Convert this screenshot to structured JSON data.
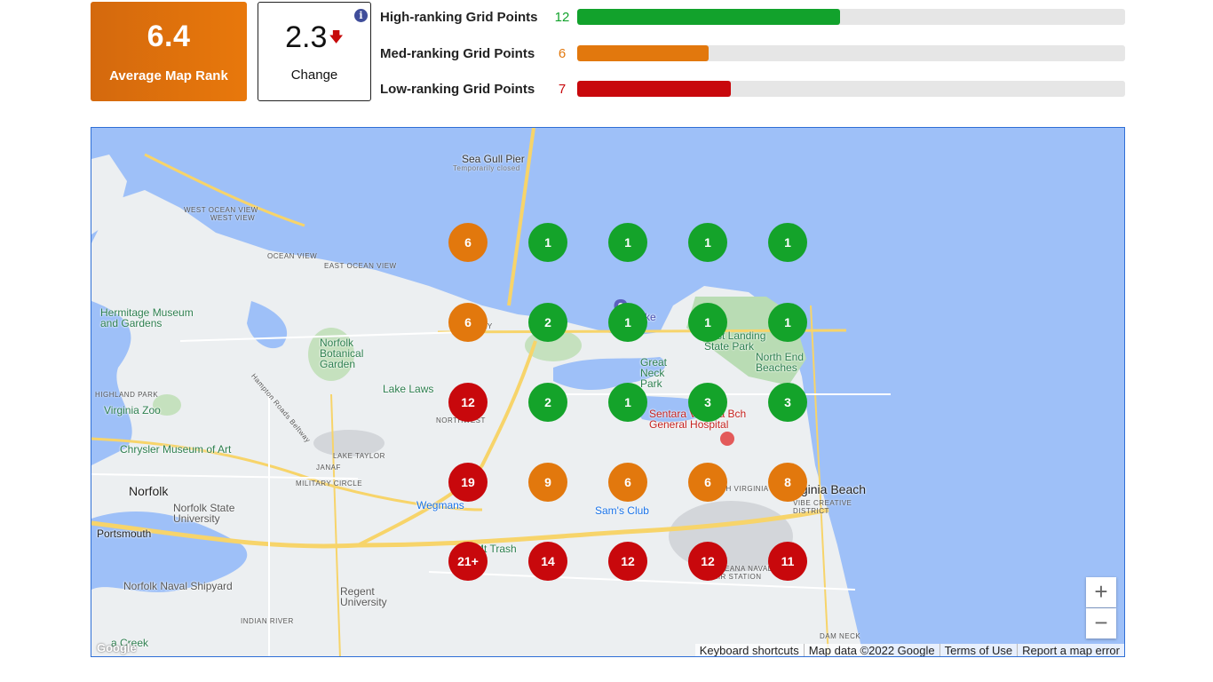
{
  "summary": {
    "average_rank": "6.4",
    "average_rank_label": "Average Map Rank",
    "change_value": "2.3",
    "change_arrow": "🡇",
    "change_label": "Change",
    "info_icon": "i"
  },
  "bars": [
    {
      "label": "High-ranking Grid Points",
      "count": "12",
      "fraction": 0.48,
      "color": "#12a22c"
    },
    {
      "label": "Med-ranking Grid Points",
      "count": "6",
      "fraction": 0.24,
      "color": "#e2780d"
    },
    {
      "label": "Low-ranking Grid Points",
      "count": "7",
      "fraction": 0.28,
      "color": "#c8080c"
    }
  ],
  "grid_ranks": [
    [
      "6",
      "1",
      "1",
      "1",
      "1"
    ],
    [
      "6",
      "2",
      "1",
      "1",
      "1"
    ],
    [
      "12",
      "2",
      "1",
      "3",
      "3"
    ],
    [
      "19",
      "9",
      "6",
      "6",
      "8"
    ],
    [
      "21+",
      "14",
      "12",
      "12",
      "11"
    ]
  ],
  "map_labels": {
    "sea_gull_pier": "Sea Gull Pier",
    "temporarily_closed": "Temporarily closed",
    "west_ocean_view": "WEST OCEAN VIEW",
    "ocean_view": "OCEAN VIEW",
    "east_ocean_view": "EAST OCEAN VIEW",
    "hermitage_museum": "Hermitage Museum and Gardens",
    "norfolk_botanical": "Norfolk Botanical Garden",
    "hampton_roads_beltway": "Hampton Roads Beltway",
    "highland_park": "HIGHLAND PARK",
    "virginia_zoo": "Virginia Zoo",
    "lake_lawson": "Lake Laws",
    "chrysler_museum": "Chrysler Museum of Art",
    "lake_taylor": "LAKE TAYLOR",
    "janaf": "JANAF",
    "military_circle": "MILITARY CIRCLE",
    "norfolk": "Norfolk",
    "norfolk_state": "Norfolk State University",
    "portsmouth": "Portsmouth",
    "wegmans": "Wegmans",
    "sams_club": "Sam's Club",
    "mt_trashmore": "Mt Trash",
    "regent_university": "Regent University",
    "indian_river": "INDIAN RIVER",
    "norfolk_naval_shipyard": "Norfolk Naval Shipyard",
    "virginia_beach": "Virginia Beach",
    "north_virginia_beach": "NORTH VIRGINIA BEACH",
    "vibe_creative_district": "VIBE CREATIVE DISTRICT",
    "great_neck_park": "Great Neck Park",
    "sentara": "Sentara Virginia Bch General Hospital",
    "first_landing": "First Landing State Park",
    "north_end_beaches": "North End Beaches",
    "chesapeake": "peake",
    "northwest": "NORTHWEST",
    "oceana": "OCEANA NAVAL AIR STATION",
    "dam_neck": "DAM NECK",
    "west_view": "WEST VIEW",
    "east_ocean_view_story": "STORY",
    "la_creek": "a Creek",
    "google": "Google"
  },
  "zoom": {
    "in": "+",
    "out": "−"
  },
  "footer": {
    "keyboard": "Keyboard shortcuts",
    "map_data": "Map data ©2022 Google",
    "terms": "Terms of Use",
    "report": "Report a map error"
  },
  "colors": {
    "high": "#14a32a",
    "med": "#e2780d",
    "low": "#c8080c",
    "water": "#9ec0f8",
    "land": "#eceff1"
  }
}
